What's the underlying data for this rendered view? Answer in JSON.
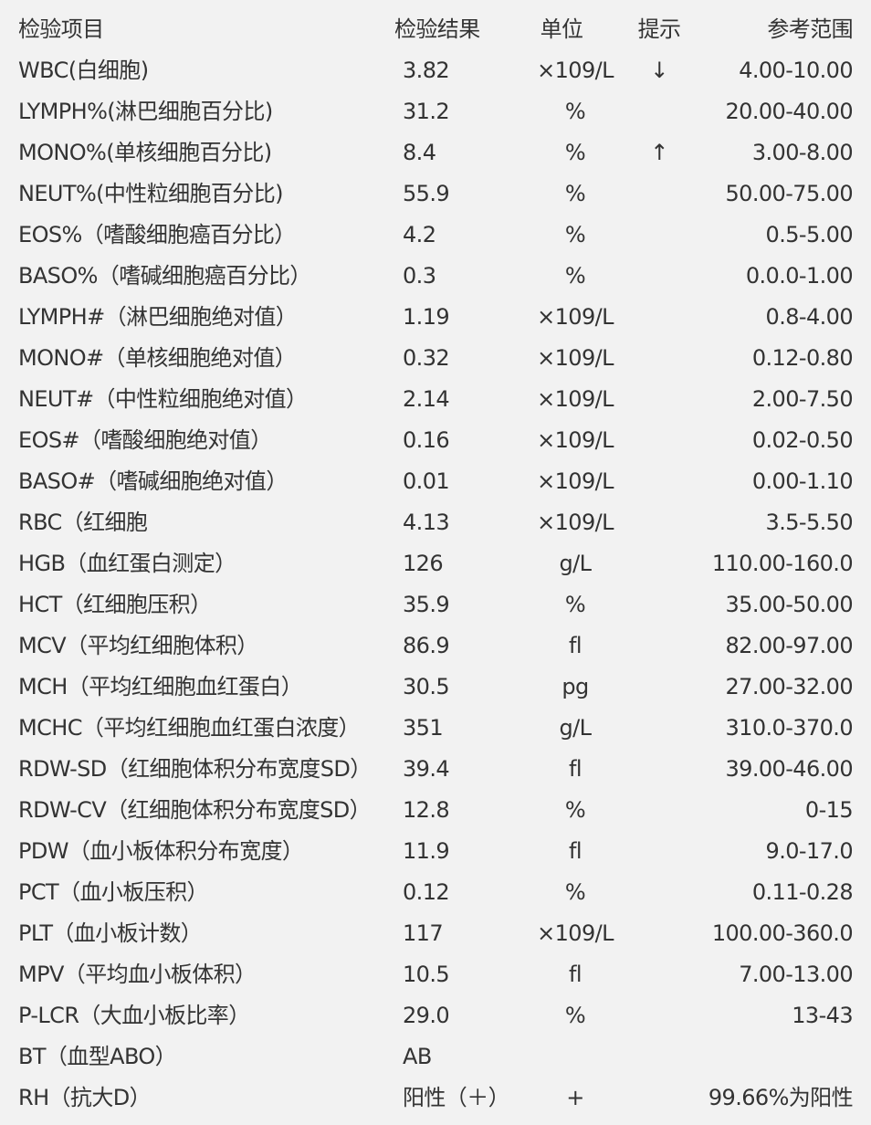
{
  "header": {
    "item": "检验项目",
    "result": "检验结果",
    "unit": "单位",
    "flag": "提示",
    "range": "参考范围"
  },
  "rows": [
    {
      "name": "WBC(白细胞)",
      "result": "3.82",
      "unit": "×109/L",
      "flag": "↓",
      "range": "4.00-10.00"
    },
    {
      "name": "LYMPH%(淋巴细胞百分比)",
      "result": "31.2",
      "unit": "%",
      "flag": "",
      "range": "20.00-40.00"
    },
    {
      "name": "MONO%(单核细胞百分比)",
      "result": "8.4",
      "unit": "%",
      "flag": "↑",
      "range": "3.00-8.00"
    },
    {
      "name": "NEUT%(中性粒细胞百分比)",
      "result": "55.9",
      "unit": "%",
      "flag": "",
      "range": "50.00-75.00"
    },
    {
      "name": "EOS%（嗜酸细胞癌百分比）",
      "result": "4.2",
      "unit": "%",
      "flag": "",
      "range": "0.5-5.00"
    },
    {
      "name": "BASO%（嗜碱细胞癌百分比）",
      "result": "0.3",
      "unit": "%",
      "flag": "",
      "range": "0.0.0-1.00"
    },
    {
      "name": "LYMPH#（淋巴细胞绝对值）",
      "result": "1.19",
      "unit": "×109/L",
      "flag": "",
      "range": "0.8-4.00"
    },
    {
      "name": "MONO#（单核细胞绝对值）",
      "result": "0.32",
      "unit": "×109/L",
      "flag": "",
      "range": "0.12-0.80"
    },
    {
      "name": "NEUT#（中性粒细胞绝对值）",
      "result": "2.14",
      "unit": "×109/L",
      "flag": "",
      "range": "2.00-7.50"
    },
    {
      "name": "EOS#（嗜酸细胞绝对值）",
      "result": "0.16",
      "unit": "×109/L",
      "flag": "",
      "range": "0.02-0.50"
    },
    {
      "name": "BASO#（嗜碱细胞绝对值）",
      "result": "0.01",
      "unit": "×109/L",
      "flag": "",
      "range": "0.00-1.10"
    },
    {
      "name": "RBC（红细胞",
      "result": "4.13",
      "unit": "×109/L",
      "flag": "",
      "range": "3.5-5.50"
    },
    {
      "name": "HGB（血红蛋白测定）",
      "result": "126",
      "unit": "g/L",
      "flag": "",
      "range": "110.00-160.0"
    },
    {
      "name": "HCT（红细胞压积）",
      "result": "35.9",
      "unit": "%",
      "flag": "",
      "range": "35.00-50.00"
    },
    {
      "name": "MCV（平均红细胞体积）",
      "result": "86.9",
      "unit": "fl",
      "flag": "",
      "range": "82.00-97.00"
    },
    {
      "name": "MCH（平均红细胞血红蛋白）",
      "result": "30.5",
      "unit": "pg",
      "flag": "",
      "range": "27.00-32.00"
    },
    {
      "name": "MCHC（平均红细胞血红蛋白浓度）",
      "result": "351",
      "unit": "g/L",
      "flag": "",
      "range": "310.0-370.0"
    },
    {
      "name": "RDW-SD（红细胞体积分布宽度SD）",
      "result": "39.4",
      "unit": "fl",
      "flag": "",
      "range": "39.00-46.00"
    },
    {
      "name": "RDW-CV（红细胞体积分布宽度SD）",
      "result": "12.8",
      "unit": "%",
      "flag": "",
      "range": "0-15"
    },
    {
      "name": "PDW（血小板体积分布宽度）",
      "result": "11.9",
      "unit": "fl",
      "flag": "",
      "range": "9.0-17.0"
    },
    {
      "name": "PCT（血小板压积）",
      "result": "0.12",
      "unit": "%",
      "flag": "",
      "range": "0.11-0.28"
    },
    {
      "name": "PLT（血小板计数）",
      "result": "117",
      "unit": "×109/L",
      "flag": "",
      "range": "100.00-360.0"
    },
    {
      "name": "MPV（平均血小板体积）",
      "result": "10.5",
      "unit": "fl",
      "flag": "",
      "range": "7.00-13.00"
    },
    {
      "name": "P-LCR（大血小板比率）",
      "result": "29.0",
      "unit": "%",
      "flag": "",
      "range": "13-43"
    },
    {
      "name": "BT（血型ABO）",
      "result": "AB",
      "unit": "",
      "flag": "",
      "range": ""
    },
    {
      "name": "RH（抗大D）",
      "result": "阳性（＋）",
      "unit": "+",
      "flag": "",
      "range": "99.66%为阳性"
    }
  ]
}
